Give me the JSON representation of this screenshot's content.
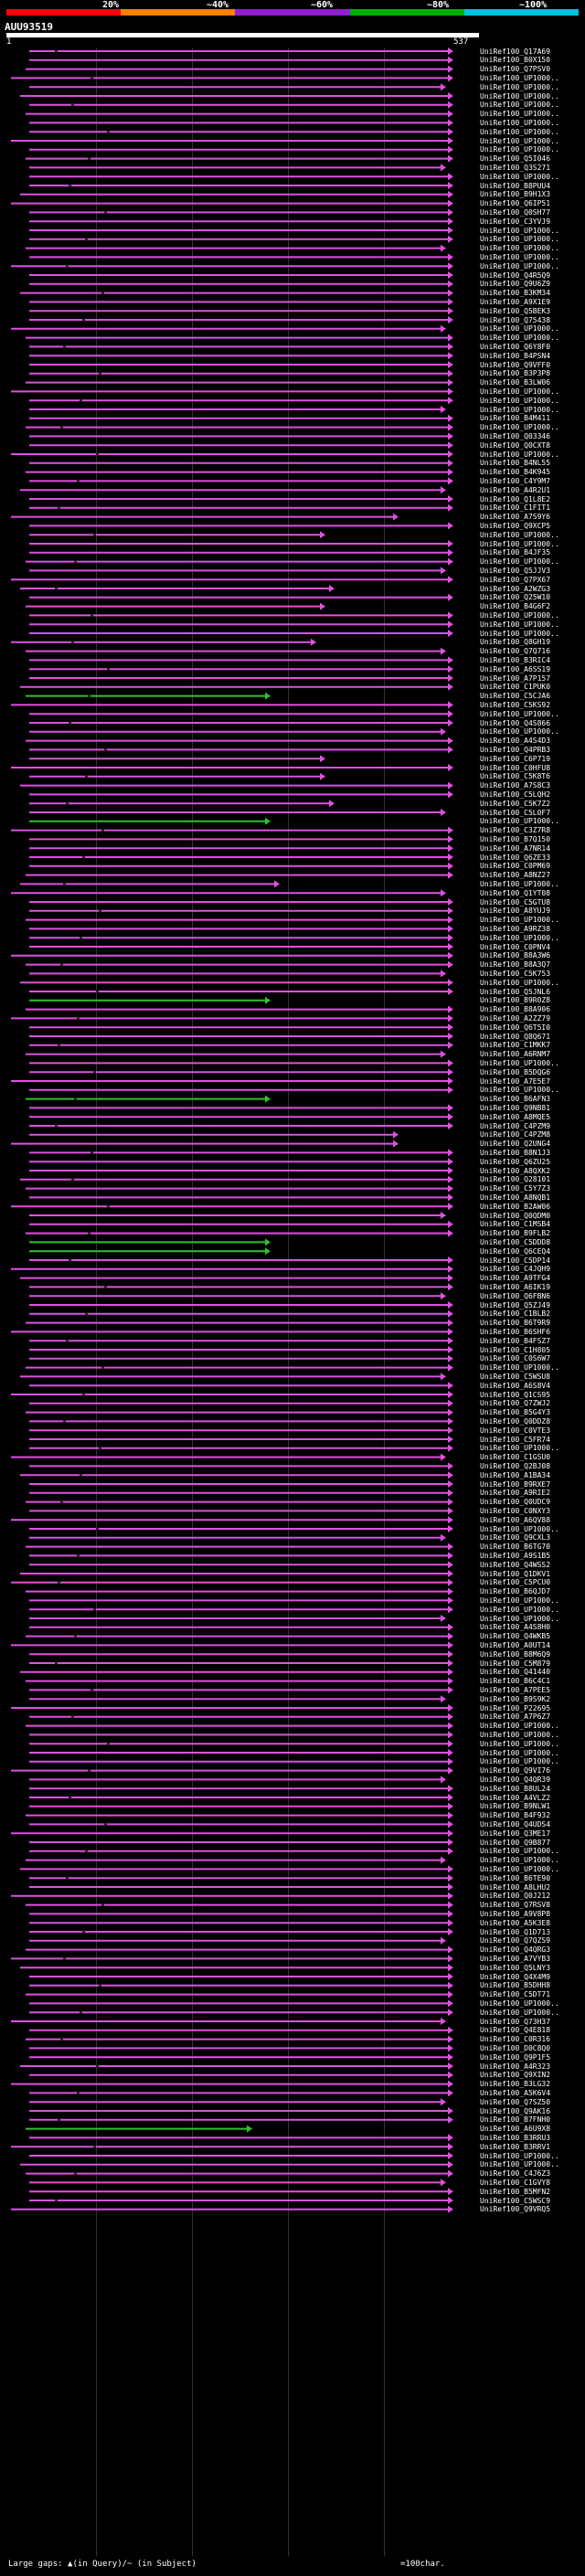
{
  "identity_scale": {
    "labels": [
      "20%",
      "~40%",
      "~60%",
      "~80%",
      "~100%"
    ],
    "colors": [
      "#ff0000",
      "#ff8000",
      "#9020d0",
      "#00b000",
      "#00c0e0"
    ]
  },
  "query": {
    "name": "AUU93519",
    "start": "1",
    "end": "537"
  },
  "colors": {
    "hit_line": "#e050e0",
    "green_line": "#30c030",
    "gap_mark": "#ffffff",
    "background": "#000000"
  },
  "hits": [
    "UniRef100_Q17A69",
    "UniRef100_B0X150",
    "UniRef100_Q7PSV0",
    "UniRef100_UP1000..",
    "UniRef100_UP1000..",
    "UniRef100_UP1000..",
    "UniRef100_UP1000..",
    "UniRef100_UP1000..",
    "UniRef100_UP1000..",
    "UniRef100_UP1000..",
    "UniRef100_UP1000..",
    "UniRef100_UP1000..",
    "UniRef100_Q5I046",
    "UniRef100_Q3S271",
    "UniRef100_UP1000..",
    "UniRef100_B8PUU4",
    "UniRef100_B9H1X3",
    "UniRef100_Q6IP51",
    "UniRef100_Q0SH77",
    "UniRef100_C3YVJ9",
    "UniRef100_UP1000..",
    "UniRef100_UP1000..",
    "UniRef100_UP1000..",
    "UniRef100_UP1000..",
    "UniRef100_UP1000..",
    "UniRef100_Q4R5Q9",
    "UniRef100_Q9U6Z9",
    "UniRef100_B3KM34",
    "UniRef100_A9X1E9",
    "UniRef100_Q5BEK3",
    "UniRef100_Q75438",
    "UniRef100_UP1000..",
    "UniRef100_UP1000..",
    "UniRef100_Q6Y8F0",
    "UniRef100_B4PSN4",
    "UniRef100_Q9VFF0",
    "UniRef100_B3P3P8",
    "UniRef100_B3LW06",
    "UniRef100_UP1000..",
    "UniRef100_UP1000..",
    "UniRef100_UP1000..",
    "UniRef100_B4M411",
    "UniRef100_UP1000..",
    "UniRef100_Q03346",
    "UniRef100_Q0CXT8",
    "UniRef100_UP1000..",
    "UniRef100_B4NL55",
    "UniRef100_B4K945",
    "UniRef100_C4Y9M7",
    "UniRef100_A4R2U1",
    "UniRef100_Q1L8E2",
    "UniRef100_C1FIT1",
    "UniRef100_A7S9Y6",
    "UniRef100_Q9XCP5",
    "UniRef100_UP1000..",
    "UniRef100_UP1000..",
    "UniRef100_B4JF35",
    "UniRef100_UP1000..",
    "UniRef100_Q5JJV3",
    "UniRef100_Q7PX67",
    "UniRef100_A2WZG3",
    "UniRef100_Q25W10",
    "UniRef100_B4G6F2",
    "UniRef100_UP1000..",
    "UniRef100_UP1000..",
    "UniRef100_UP1000..",
    "UniRef100_Q8GH19",
    "UniRef100_Q7Q716",
    "UniRef100_B3RIC4",
    "UniRef100_A6SS19",
    "UniRef100_A7P157",
    "UniRef100_C1PUK0",
    "UniRef100_C5CJA6",
    "UniRef100_C5KS92",
    "UniRef100_UP1000..",
    "UniRef100_Q4S866",
    "UniRef100_UP1000..",
    "UniRef100_A4S4D3",
    "UniRef100_Q4PRB3",
    "UniRef100_C6P719",
    "UniRef100_C0HFU8",
    "UniRef100_C5K8T6",
    "UniRef100_A7S8C3",
    "UniRef100_C5LQH2",
    "UniRef100_C5K7Z2",
    "UniRef100_C5L0F7",
    "UniRef100_UP1000..",
    "UniRef100_C3Z7R8",
    "UniRef100_B7Q150",
    "UniRef100_A7NR14",
    "UniRef100_Q6ZE33",
    "UniRef100_C0PM69",
    "UniRef100_A8NZ27",
    "UniRef100_UP1000..",
    "UniRef100_Q1YT08",
    "UniRef100_C5GTU8",
    "UniRef100_A8YUJ9",
    "UniRef100_UP1000..",
    "UniRef100_A9RZ38",
    "UniRef100_UP1000..",
    "UniRef100_C0PNV4",
    "UniRef100_B8A3W6",
    "UniRef100_B8A3Q7",
    "UniRef100_C5K753",
    "UniRef100_UP1000..",
    "UniRef100_Q5JNL6",
    "UniRef100_B9R0Z8",
    "UniRef100_B8A906",
    "UniRef100_A2ZZ79",
    "UniRef100_Q6T5I0",
    "UniRef100_Q8Q671",
    "UniRef100_C1MKK7",
    "UniRef100_A6RNM7",
    "UniRef100_UP1000..",
    "UniRef100_B5DQG6",
    "UniRef100_A7E5E7",
    "UniRef100_UP1000..",
    "UniRef100_B6AFN3",
    "UniRef100_Q9NB81",
    "UniRef100_A8MQE5",
    "UniRef100_C4PZM9",
    "UniRef100_C4PZM8",
    "UniRef100_Q2UNG4",
    "UniRef100_B8N1J3",
    "UniRef100_Q6ZU25",
    "UniRef100_A8QXK2",
    "UniRef100_Q28101",
    "UniRef100_C5Y7Z3",
    "UniRef100_A8NQB1",
    "UniRef100_B2AW06",
    "UniRef100_Q0QDM0",
    "UniRef100_C1MSB4",
    "UniRef100_B9FLB2",
    "UniRef100_C5DDD8",
    "UniRef100_Q6CEQ4",
    "UniRef100_C5DP14",
    "UniRef100_C4JQH9",
    "UniRef100_A9TFG4",
    "UniRef100_A6IK19",
    "UniRef100_Q6FBN6",
    "UniRef100_Q5ZJ49",
    "UniRef100_C1BLB2",
    "UniRef100_B6T9R9",
    "UniRef100_B6SHF6",
    "UniRef100_B4FSZ7",
    "UniRef100_C1H805",
    "UniRef100_C0S6W7",
    "UniRef100_UP1000..",
    "UniRef100_C5WSU8",
    "UniRef100_A6S8V4",
    "UniRef100_Q1CS95",
    "UniRef100_Q7ZWJ2",
    "UniRef100_B5G4Y3",
    "UniRef100_Q0DDZ8",
    "UniRef100_C0VTE3",
    "UniRef100_C5FR74",
    "UniRef100_UP1000..",
    "UniRef100_C1GSU0",
    "UniRef100_Q2BJ08",
    "UniRef100_A1BA34",
    "UniRef100_B9RXE7",
    "UniRef100_A9RIE2",
    "UniRef100_Q0UDC9",
    "UniRef100_C0NXY3",
    "UniRef100_A6QV88",
    "UniRef100_UP1000..",
    "UniRef100_Q9CXL3",
    "UniRef100_B6TG70",
    "UniRef100_A9S1B5",
    "UniRef100_Q4WSS2",
    "UniRef100_Q1DKV1",
    "UniRef100_C5PCU0",
    "UniRef100_B6QJD7",
    "UniRef100_UP1000..",
    "UniRef100_UP1000..",
    "UniRef100_UP1000..",
    "UniRef100_A4S8H0",
    "UniRef100_Q4WKB5",
    "UniRef100_A0UT14",
    "UniRef100_B8M6Q9",
    "UniRef100_C5M879",
    "UniRef100_Q41440",
    "UniRef100_B6C4C1",
    "UniRef100_A7PEE5",
    "UniRef100_B9S9K2",
    "UniRef100_P22695",
    "UniRef100_A7P6Z7",
    "UniRef100_UP1000..",
    "UniRef100_UP1000..",
    "UniRef100_UP1000..",
    "UniRef100_UP1000..",
    "UniRef100_UP1000..",
    "UniRef100_Q9VI76",
    "UniRef100_Q4QR39",
    "UniRef100_B8UL24",
    "UniRef100_A4VLZ2",
    "UniRef100_B9NLW1",
    "UniRef100_B4F932",
    "UniRef100_Q4UDS4",
    "UniRef100_Q3ME17",
    "UniRef100_Q9B877",
    "UniRef100_UP1000..",
    "UniRef100_UP1000..",
    "UniRef100_UP1000..",
    "UniRef100_B6TE90",
    "UniRef100_A8LHU2",
    "UniRef100_Q0J212",
    "UniRef100_Q7RSV8",
    "UniRef100_A9V8P8",
    "UniRef100_A5K3E8",
    "UniRef100_Q1D713",
    "UniRef100_Q7QZS9",
    "UniRef100_Q4QRG3",
    "UniRef100_A7VYB3",
    "UniRef100_Q5LNY3",
    "UniRef100_Q4X4M9",
    "UniRef100_B5DHH8",
    "UniRef100_C5DT71",
    "UniRef100_UP1000..",
    "UniRef100_UP1000..",
    "UniRef100_Q73H37",
    "UniRef100_Q4E818",
    "UniRef100_C0R316",
    "UniRef100_D0C8Q0",
    "UniRef100_Q9P1F5",
    "UniRef100_A4R323",
    "UniRef100_Q9XIN2",
    "UniRef100_B3LG32",
    "UniRef100_A5K6V4",
    "UniRef100_Q7SZ50",
    "UniRef100_Q9AK16",
    "UniRef100_B7FNH0",
    "UniRef100_A6U9X8",
    "UniRef100_B3RRU3",
    "UniRef100_B3RRV1",
    "UniRef100_UP1000..",
    "UniRef100_UP1000..",
    "UniRef100_C4J6Z3",
    "UniRef100_C1GVY8",
    "UniRef100_B5MFN2",
    "UniRef100_C5WSC9",
    "UniRef100_Q9VRQ5"
  ],
  "legend": {
    "text": "Large gaps: ▲(in Query)/~ (in Subject)",
    "scale": "=100char."
  }
}
